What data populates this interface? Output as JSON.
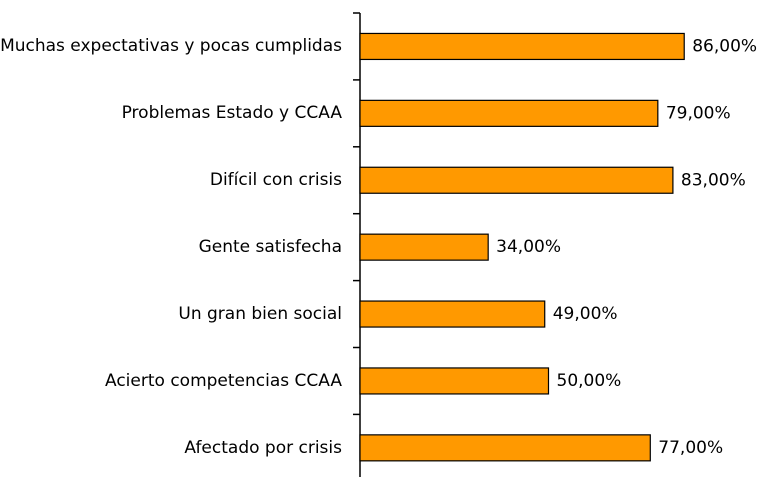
{
  "chart_data": {
    "type": "bar",
    "orientation": "horizontal",
    "categories": [
      "Muchas expectativas y pocas cumplidas",
      "Problemas Estado y CCAA",
      "Difícil con crisis",
      "Gente satisfecha",
      "Un gran bien social",
      "Acierto competencias CCAA",
      "Afectado por crisis"
    ],
    "values": [
      86,
      79,
      83,
      34,
      49,
      50,
      77
    ],
    "value_labels": [
      "86,00%",
      "79,00%",
      "83,00%",
      "34,00%",
      "49,00%",
      "50,00%",
      "77,00%"
    ],
    "color": "#ff9900"
  }
}
